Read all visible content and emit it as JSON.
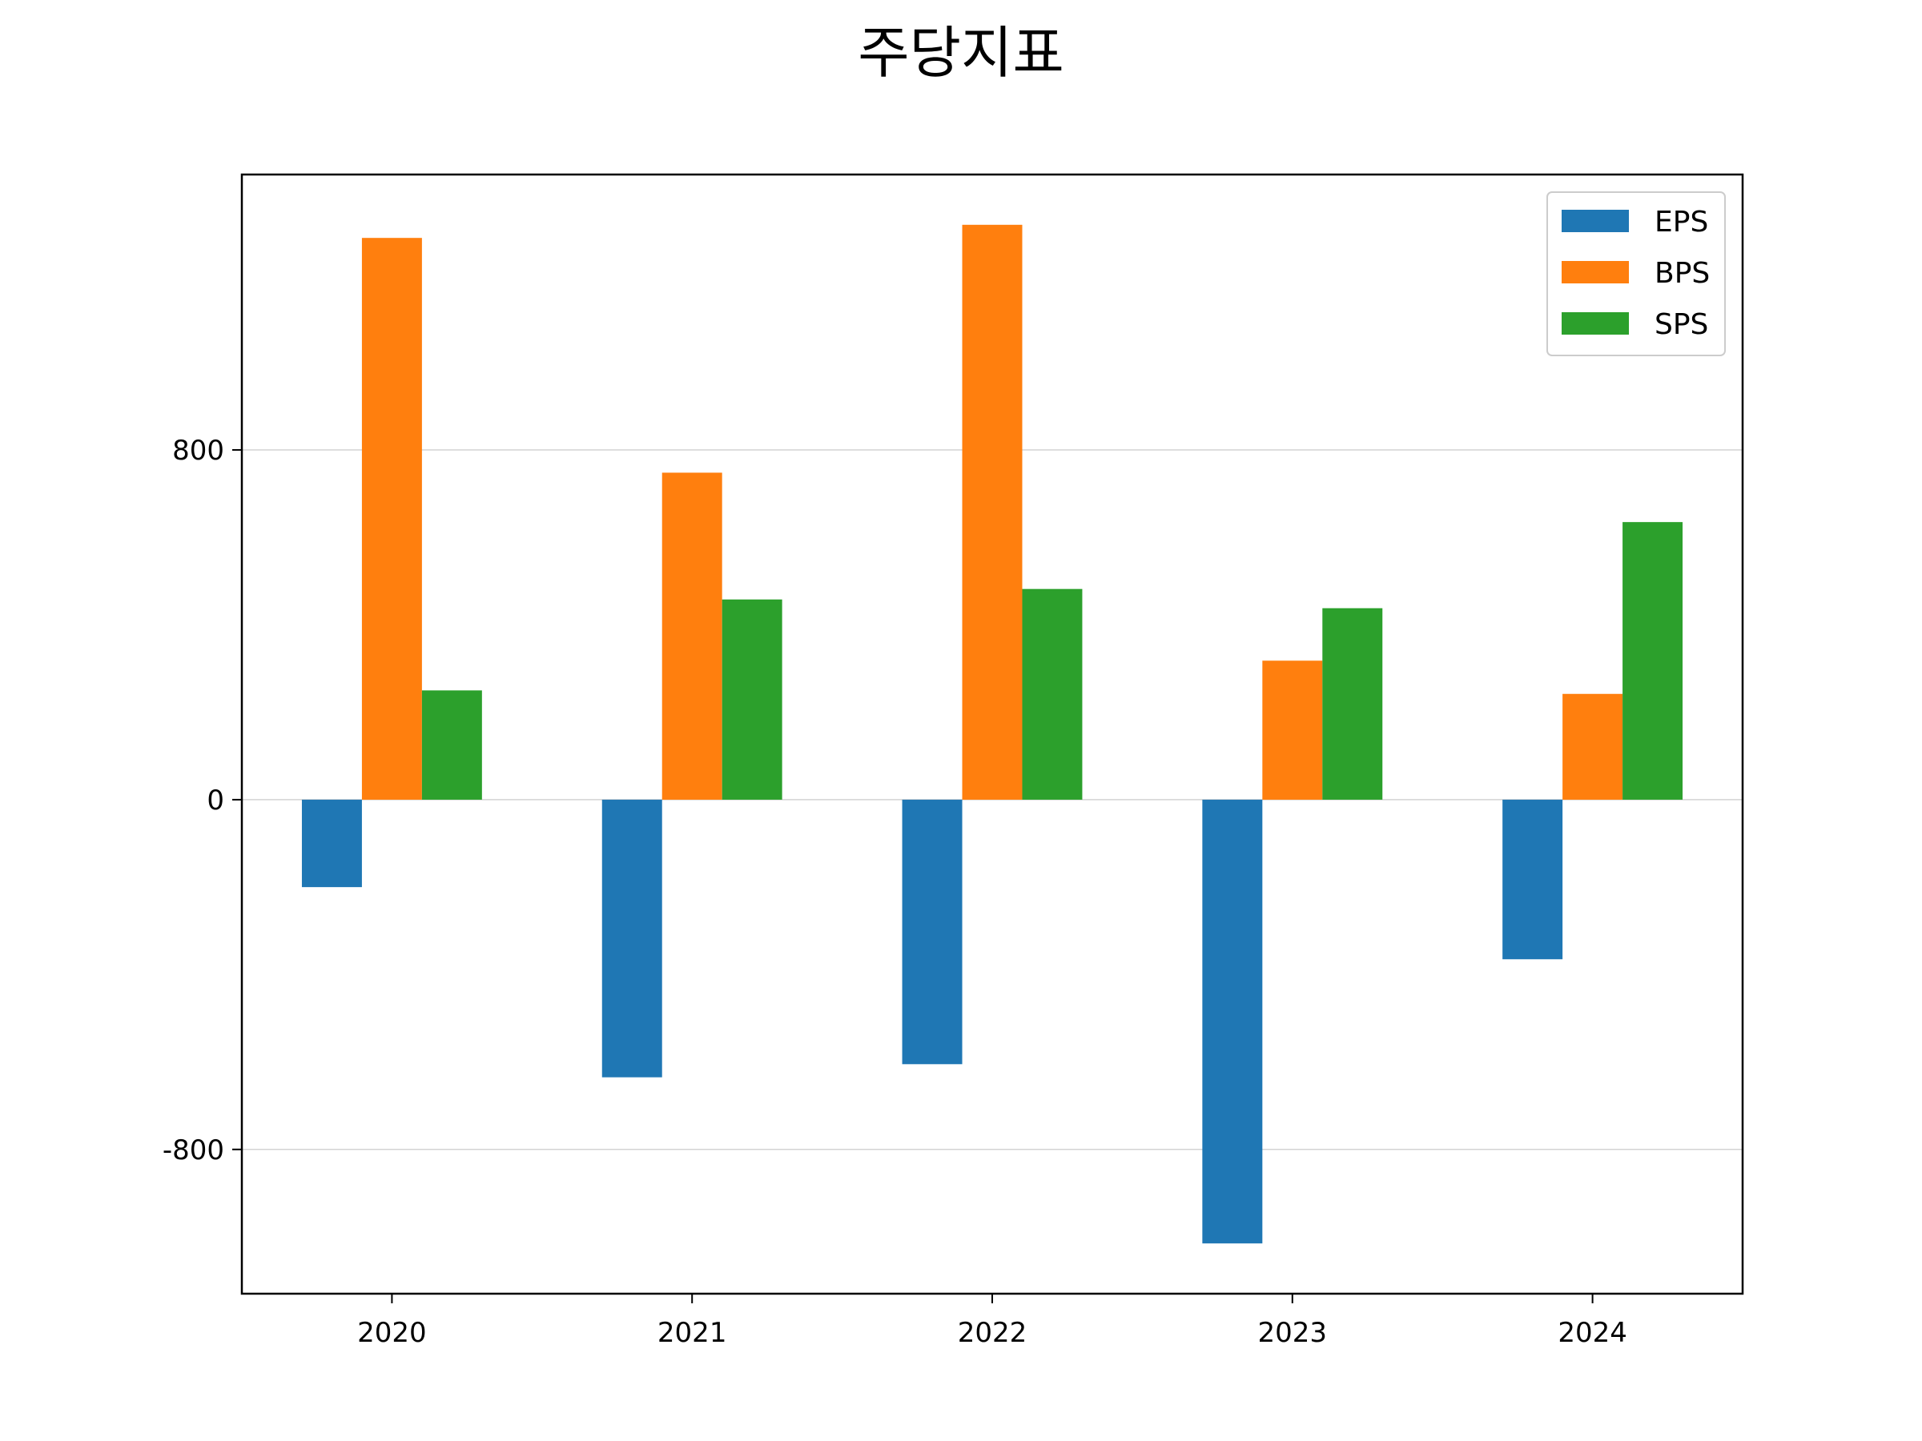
{
  "chart_data": {
    "type": "bar",
    "title": "주당지표",
    "xlabel": "",
    "ylabel": "",
    "categories": [
      "2020",
      "2021",
      "2022",
      "2023",
      "2024"
    ],
    "series": [
      {
        "name": "EPS",
        "color": "#1f77b4",
        "values": [
          -200,
          -635,
          -605,
          -1015,
          -365
        ]
      },
      {
        "name": "BPS",
        "color": "#ff7f0e",
        "values": [
          1285,
          748,
          1315,
          318,
          242
        ]
      },
      {
        "name": "SPS",
        "color": "#2ca02c",
        "values": [
          250,
          458,
          482,
          438,
          635
        ]
      }
    ],
    "ylim": [
      -1130,
      1430
    ],
    "yticks": [
      -800,
      0,
      800
    ],
    "ytick_labels": [
      "-800",
      "0",
      "800"
    ],
    "grid": "y",
    "legend_position": "top-right"
  }
}
